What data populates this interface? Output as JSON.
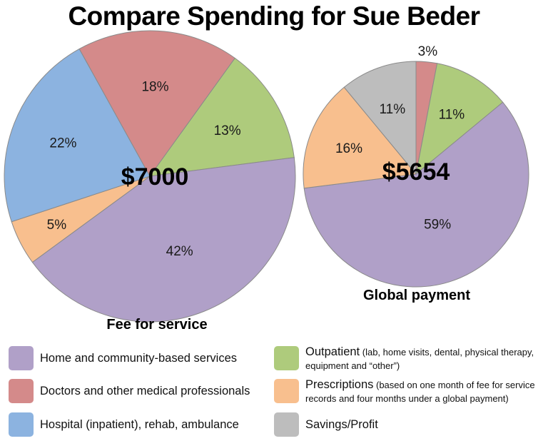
{
  "title": "Compare Spending for Sue Beder",
  "pies": [
    {
      "caption": "Fee for service",
      "total": "$7000",
      "slices": [
        {
          "category": "Doctors and other medical professionals",
          "label": "18%",
          "value": 18,
          "color": "#d48a8a"
        },
        {
          "category": "Outpatient",
          "label": "13%",
          "value": 13,
          "color": "#aecb7c"
        },
        {
          "category": "Home and community-based services",
          "label": "42%",
          "value": 42,
          "color": "#b0a0c8"
        },
        {
          "category": "Prescriptions",
          "label": "5%",
          "value": 5,
          "color": "#f8bf8e"
        },
        {
          "category": "Hospital (inpatient), rehab, ambulance",
          "label": "22%",
          "value": 22,
          "color": "#8cb3e0"
        }
      ]
    },
    {
      "caption": "Global payment",
      "total": "$5654",
      "slices": [
        {
          "category": "Doctors and other medical professionals",
          "label": "3%",
          "value": 3,
          "color": "#d48a8a"
        },
        {
          "category": "Outpatient",
          "label": "11%",
          "value": 11,
          "color": "#aecb7c"
        },
        {
          "category": "Home and community-based services",
          "label": "59%",
          "value": 59,
          "color": "#b0a0c8"
        },
        {
          "category": "Prescriptions",
          "label": "16%",
          "value": 16,
          "color": "#f8bf8e"
        },
        {
          "category": "Savings/Profit",
          "label": "11%",
          "value": 11,
          "color": "#bdbdbd"
        }
      ]
    }
  ],
  "legend": [
    {
      "main": "Home and community-based services",
      "sub": "",
      "color": "#b0a0c8"
    },
    {
      "main": "Doctors and other medical professionals",
      "sub": "",
      "color": "#d48a8a"
    },
    {
      "main": "Hospital (inpatient), rehab, ambulance",
      "sub": "",
      "color": "#8cb3e0"
    },
    {
      "main": "Outpatient",
      "sub": " (lab, home visits, dental, physical therapy, equipment and “other”)",
      "color": "#aecb7c"
    },
    {
      "main": "Prescriptions",
      "sub": " (based on one month of fee for service records and four months under a global payment)",
      "color": "#f8bf8e"
    },
    {
      "main": "Savings/Profit",
      "sub": "",
      "color": "#bdbdbd"
    }
  ],
  "chart_data": [
    {
      "type": "pie",
      "title": "Compare Spending for Sue Beder",
      "subtitle": "Fee for service",
      "total_label": "$7000",
      "categories": [
        "Doctors and other medical professionals",
        "Outpatient",
        "Home and community-based services",
        "Prescriptions",
        "Hospital (inpatient), rehab, ambulance"
      ],
      "values": [
        18,
        13,
        42,
        5,
        22
      ],
      "unit": "%",
      "legend_position": "bottom"
    },
    {
      "type": "pie",
      "title": "Compare Spending for Sue Beder",
      "subtitle": "Global payment",
      "total_label": "$5654",
      "categories": [
        "Doctors and other medical professionals",
        "Outpatient",
        "Home and community-based services",
        "Prescriptions",
        "Savings/Profit"
      ],
      "values": [
        3,
        11,
        59,
        16,
        11
      ],
      "unit": "%",
      "legend_position": "bottom"
    }
  ]
}
